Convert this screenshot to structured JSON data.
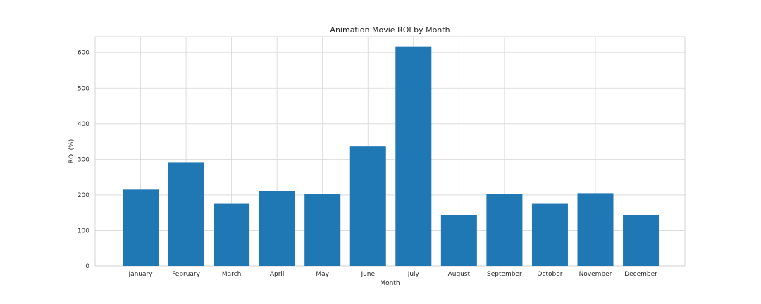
{
  "chart_data": {
    "type": "bar",
    "title": "Animation Movie ROI by Month",
    "xlabel": "Month",
    "ylabel": "ROI (%)",
    "categories": [
      "January",
      "February",
      "March",
      "April",
      "May",
      "June",
      "July",
      "August",
      "September",
      "October",
      "November",
      "December"
    ],
    "values": [
      215,
      292,
      175,
      210,
      203,
      336,
      616,
      143,
      203,
      175,
      205,
      143
    ],
    "ylim": [
      0,
      645
    ],
    "yticks": [
      0,
      100,
      200,
      300,
      400,
      500,
      600
    ],
    "grid": true,
    "bar_color": "#1f77b4"
  }
}
